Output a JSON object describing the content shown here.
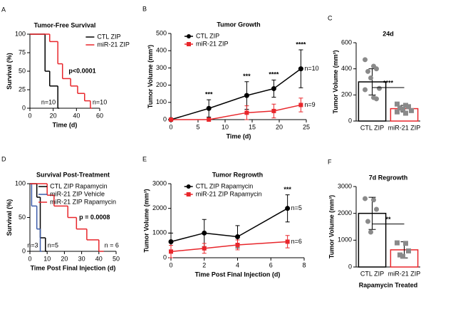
{
  "chart_data": [
    {
      "type": "survival",
      "panel": "A",
      "title": "Tumor-Free Survival",
      "xlabel": "Time (d)",
      "ylabel": "Survival (%)",
      "xlim": [
        0,
        60
      ],
      "xticks": [
        0,
        20,
        40,
        60
      ],
      "ylim": [
        0,
        100
      ],
      "yticks": [
        0,
        25,
        50,
        75,
        100
      ],
      "legend": "upper right",
      "p_value": "p<0.0001",
      "series": [
        {
          "name": "CTL ZIP",
          "color": "#000000",
          "x": [
            0,
            13,
            17,
            24
          ],
          "values": [
            100,
            50,
            30,
            0
          ],
          "n_label": "n=10"
        },
        {
          "name": "miR-21 ZIP",
          "color": "#e8262b",
          "x": [
            0,
            17,
            24,
            28,
            35,
            41,
            47,
            52
          ],
          "values": [
            100,
            90,
            60,
            40,
            30,
            20,
            10,
            0
          ],
          "n_label": "n=10"
        }
      ]
    },
    {
      "type": "line",
      "panel": "B",
      "title": "Tumor Growth",
      "xlabel": "Time (d)",
      "ylabel": "Tumor Volume (mm³)",
      "xlim": [
        0,
        25
      ],
      "xticks": [
        0,
        5,
        10,
        15,
        20,
        25
      ],
      "ylim": [
        0,
        500
      ],
      "yticks": [
        0,
        100,
        200,
        300,
        400,
        500
      ],
      "legend": "upper left",
      "x": [
        0,
        7,
        14,
        19,
        24
      ],
      "significance": [
        null,
        "***",
        "***",
        "****",
        "****"
      ],
      "series": [
        {
          "name": "CTL ZIP",
          "color": "#000000",
          "marker": "circle",
          "values": [
            0,
            65,
            140,
            180,
            295
          ],
          "errors": [
            0,
            50,
            80,
            50,
            110
          ],
          "n_label": "n=10"
        },
        {
          "name": "miR-21 ZIP",
          "color": "#e8262b",
          "marker": "square",
          "values": [
            0,
            0,
            40,
            50,
            85
          ],
          "errors": [
            0,
            0,
            40,
            40,
            40
          ],
          "n_label": "n=9"
        }
      ]
    },
    {
      "type": "bar",
      "panel": "C",
      "title": "24d",
      "ylabel": "Tumor Volume (mm³)",
      "ylim": [
        0,
        600
      ],
      "yticks": [
        0,
        200,
        400,
        600
      ],
      "significance": "****",
      "categories": [
        "CTL ZIP",
        "miR-21 ZIP"
      ],
      "colors": [
        "#000000",
        "#e8262b"
      ],
      "values": [
        300,
        95
      ],
      "errors": [
        100,
        25
      ],
      "points": [
        [
          470,
          420,
          400,
          380,
          330,
          250,
          240,
          180,
          170
        ],
        [
          130,
          120,
          110,
          100,
          90,
          80,
          70,
          60
        ]
      ]
    },
    {
      "type": "survival",
      "panel": "D",
      "title": "Survival Post-Treatment",
      "xlabel": "Time Post Final Injection (d)",
      "ylabel": "Survival (%)",
      "xlim": [
        0,
        50
      ],
      "xticks": [
        0,
        10,
        20,
        30,
        40,
        50
      ],
      "ylim": [
        0,
        100
      ],
      "yticks": [
        0,
        50,
        100
      ],
      "legend": "upper left",
      "p_value": "p = 0.0008",
      "series": [
        {
          "name": "CTL ZIP Rapamycin",
          "color": "#000000",
          "x": [
            0,
            4,
            6,
            9
          ],
          "values": [
            100,
            80,
            20,
            0
          ],
          "n_label": "n=5"
        },
        {
          "name": "miR-21 ZIP Vehicle",
          "color": "#3b5ba9",
          "x": [
            0,
            1,
            4,
            6
          ],
          "values": [
            100,
            67,
            33,
            0
          ],
          "n_label": "n=3"
        },
        {
          "name": "miR-21 ZIP Rapamycin",
          "color": "#e8262b",
          "x": [
            0,
            10,
            14,
            22,
            27,
            33,
            40,
            42
          ],
          "values": [
            100,
            83,
            67,
            50,
            33,
            17,
            0,
            0
          ],
          "n_label": "n = 6"
        }
      ]
    },
    {
      "type": "line",
      "panel": "E",
      "title": "Tumor Regrowth",
      "xlabel": "Time Post Final Injection (d)",
      "ylabel": "Tumor Volume (mm³)",
      "xlim": [
        0,
        8
      ],
      "xticks": [
        0,
        2,
        4,
        6,
        8
      ],
      "ylim": [
        0,
        3000
      ],
      "yticks": [
        0,
        1000,
        2000,
        3000
      ],
      "legend": "upper left",
      "x": [
        0,
        2,
        4,
        7
      ],
      "significance": [
        null,
        null,
        null,
        "***"
      ],
      "series": [
        {
          "name": "CTL ZIP Rapamycin",
          "color": "#000000",
          "marker": "circle",
          "values": [
            650,
            1000,
            850,
            2000
          ],
          "errors": [
            350,
            550,
            450,
            550
          ],
          "n_label": "n=5"
        },
        {
          "name": "miR-21 ZIP Rapamycin",
          "color": "#e8262b",
          "marker": "square",
          "values": [
            250,
            380,
            520,
            650
          ],
          "errors": [
            250,
            200,
            200,
            250
          ],
          "n_label": "n=6"
        }
      ]
    },
    {
      "type": "bar",
      "panel": "F",
      "title": "7d  Regrowth",
      "xlabel": "Rapamycin Treated",
      "ylabel": "Tumor Volume (mm³)",
      "ylim": [
        0,
        3000
      ],
      "yticks": [
        0,
        1000,
        2000,
        3000
      ],
      "significance": "**",
      "categories": [
        "CTL ZIP",
        "miR-21 ZIP"
      ],
      "colors": [
        "#000000",
        "#e8262b"
      ],
      "values": [
        2000,
        640
      ],
      "errors": [
        600,
        300
      ],
      "points": [
        [
          2550,
          2500,
          2150,
          1700,
          1300
        ],
        [
          900,
          880,
          600,
          450,
          400
        ]
      ]
    }
  ]
}
